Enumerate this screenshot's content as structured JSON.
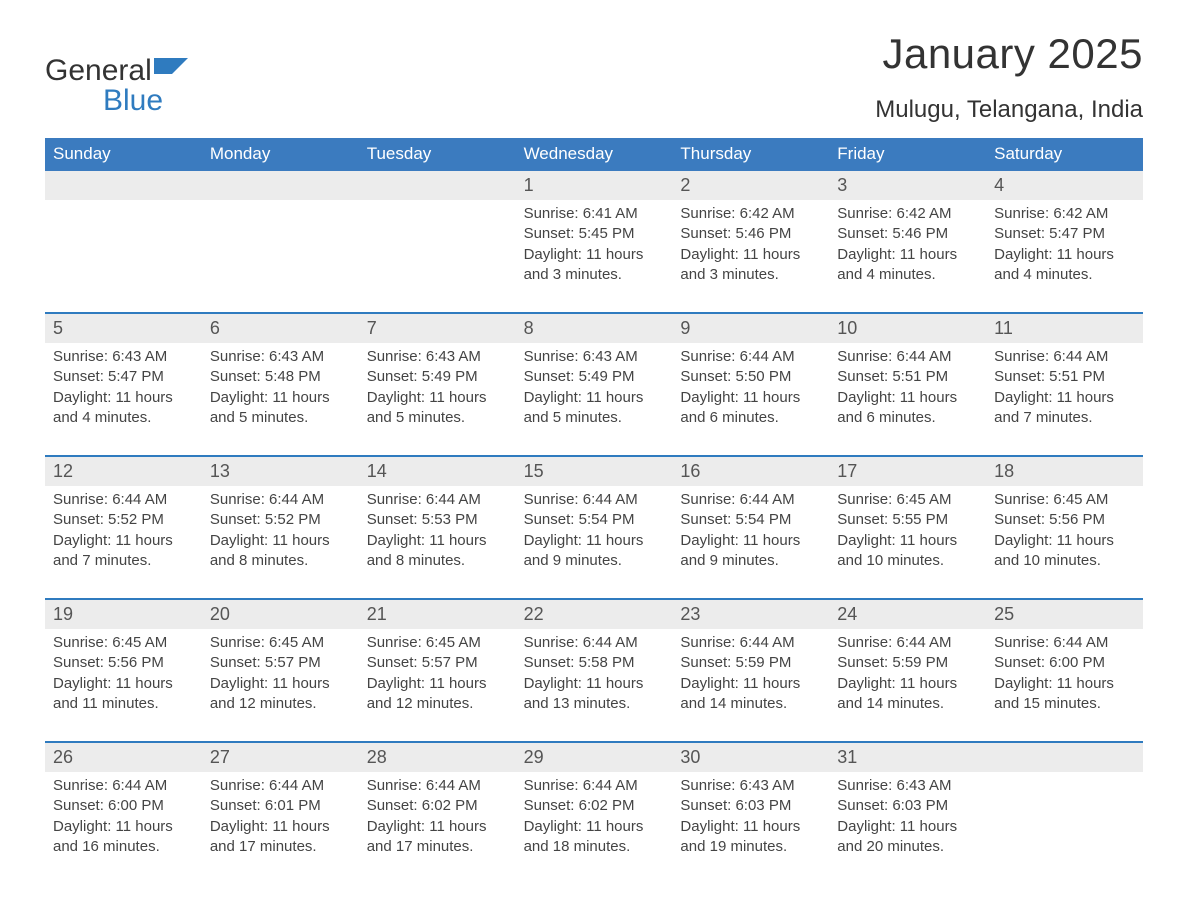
{
  "logo": {
    "text1": "General",
    "text2": "Blue",
    "shape_color": "#2f7bbf"
  },
  "title": "January 2025",
  "location": "Mulugu, Telangana, India",
  "colors": {
    "header_bg": "#3b7bbf",
    "header_text": "#ffffff",
    "daynum_bg": "#ececec",
    "week_border": "#2f7bbf",
    "body_text": "#444444",
    "title_text": "#333333"
  },
  "typography": {
    "title_fontsize": 42,
    "location_fontsize": 24,
    "weekday_fontsize": 17,
    "daynum_fontsize": 18,
    "cell_fontsize": 15
  },
  "weekdays": [
    "Sunday",
    "Monday",
    "Tuesday",
    "Wednesday",
    "Thursday",
    "Friday",
    "Saturday"
  ],
  "weeks": [
    [
      null,
      null,
      null,
      {
        "n": "1",
        "sunrise": "6:41 AM",
        "sunset": "5:45 PM",
        "dl": "11 hours and 3 minutes."
      },
      {
        "n": "2",
        "sunrise": "6:42 AM",
        "sunset": "5:46 PM",
        "dl": "11 hours and 3 minutes."
      },
      {
        "n": "3",
        "sunrise": "6:42 AM",
        "sunset": "5:46 PM",
        "dl": "11 hours and 4 minutes."
      },
      {
        "n": "4",
        "sunrise": "6:42 AM",
        "sunset": "5:47 PM",
        "dl": "11 hours and 4 minutes."
      }
    ],
    [
      {
        "n": "5",
        "sunrise": "6:43 AM",
        "sunset": "5:47 PM",
        "dl": "11 hours and 4 minutes."
      },
      {
        "n": "6",
        "sunrise": "6:43 AM",
        "sunset": "5:48 PM",
        "dl": "11 hours and 5 minutes."
      },
      {
        "n": "7",
        "sunrise": "6:43 AM",
        "sunset": "5:49 PM",
        "dl": "11 hours and 5 minutes."
      },
      {
        "n": "8",
        "sunrise": "6:43 AM",
        "sunset": "5:49 PM",
        "dl": "11 hours and 5 minutes."
      },
      {
        "n": "9",
        "sunrise": "6:44 AM",
        "sunset": "5:50 PM",
        "dl": "11 hours and 6 minutes."
      },
      {
        "n": "10",
        "sunrise": "6:44 AM",
        "sunset": "5:51 PM",
        "dl": "11 hours and 6 minutes."
      },
      {
        "n": "11",
        "sunrise": "6:44 AM",
        "sunset": "5:51 PM",
        "dl": "11 hours and 7 minutes."
      }
    ],
    [
      {
        "n": "12",
        "sunrise": "6:44 AM",
        "sunset": "5:52 PM",
        "dl": "11 hours and 7 minutes."
      },
      {
        "n": "13",
        "sunrise": "6:44 AM",
        "sunset": "5:52 PM",
        "dl": "11 hours and 8 minutes."
      },
      {
        "n": "14",
        "sunrise": "6:44 AM",
        "sunset": "5:53 PM",
        "dl": "11 hours and 8 minutes."
      },
      {
        "n": "15",
        "sunrise": "6:44 AM",
        "sunset": "5:54 PM",
        "dl": "11 hours and 9 minutes."
      },
      {
        "n": "16",
        "sunrise": "6:44 AM",
        "sunset": "5:54 PM",
        "dl": "11 hours and 9 minutes."
      },
      {
        "n": "17",
        "sunrise": "6:45 AM",
        "sunset": "5:55 PM",
        "dl": "11 hours and 10 minutes."
      },
      {
        "n": "18",
        "sunrise": "6:45 AM",
        "sunset": "5:56 PM",
        "dl": "11 hours and 10 minutes."
      }
    ],
    [
      {
        "n": "19",
        "sunrise": "6:45 AM",
        "sunset": "5:56 PM",
        "dl": "11 hours and 11 minutes."
      },
      {
        "n": "20",
        "sunrise": "6:45 AM",
        "sunset": "5:57 PM",
        "dl": "11 hours and 12 minutes."
      },
      {
        "n": "21",
        "sunrise": "6:45 AM",
        "sunset": "5:57 PM",
        "dl": "11 hours and 12 minutes."
      },
      {
        "n": "22",
        "sunrise": "6:44 AM",
        "sunset": "5:58 PM",
        "dl": "11 hours and 13 minutes."
      },
      {
        "n": "23",
        "sunrise": "6:44 AM",
        "sunset": "5:59 PM",
        "dl": "11 hours and 14 minutes."
      },
      {
        "n": "24",
        "sunrise": "6:44 AM",
        "sunset": "5:59 PM",
        "dl": "11 hours and 14 minutes."
      },
      {
        "n": "25",
        "sunrise": "6:44 AM",
        "sunset": "6:00 PM",
        "dl": "11 hours and 15 minutes."
      }
    ],
    [
      {
        "n": "26",
        "sunrise": "6:44 AM",
        "sunset": "6:00 PM",
        "dl": "11 hours and 16 minutes."
      },
      {
        "n": "27",
        "sunrise": "6:44 AM",
        "sunset": "6:01 PM",
        "dl": "11 hours and 17 minutes."
      },
      {
        "n": "28",
        "sunrise": "6:44 AM",
        "sunset": "6:02 PM",
        "dl": "11 hours and 17 minutes."
      },
      {
        "n": "29",
        "sunrise": "6:44 AM",
        "sunset": "6:02 PM",
        "dl": "11 hours and 18 minutes."
      },
      {
        "n": "30",
        "sunrise": "6:43 AM",
        "sunset": "6:03 PM",
        "dl": "11 hours and 19 minutes."
      },
      {
        "n": "31",
        "sunrise": "6:43 AM",
        "sunset": "6:03 PM",
        "dl": "11 hours and 20 minutes."
      },
      null
    ]
  ],
  "labels": {
    "sunrise": "Sunrise:",
    "sunset": "Sunset:",
    "daylight": "Daylight:"
  }
}
